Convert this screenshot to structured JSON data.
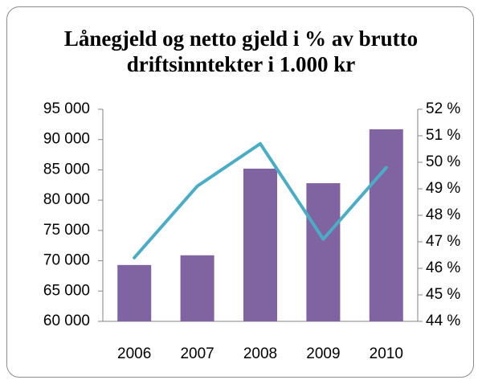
{
  "chart_data": {
    "type": "bar-line",
    "title": "Lånegjeld og netto gjeld i % av brutto driftsinntekter i 1.000 kr",
    "categories": [
      "2006",
      "2007",
      "2008",
      "2009",
      "2010"
    ],
    "series": [
      {
        "type": "bar",
        "color": "#8064a2",
        "values": [
          69300,
          70900,
          85200,
          82800,
          91700
        ]
      },
      {
        "type": "line",
        "axis": "y2",
        "color": "#4bacc6",
        "values": [
          46.4,
          49.1,
          50.7,
          47.1,
          49.8
        ]
      }
    ],
    "ylim": [
      60000,
      95000
    ],
    "yticks": [
      {
        "value": 60000,
        "label": "60 000"
      },
      {
        "value": 65000,
        "label": "65 000"
      },
      {
        "value": 70000,
        "label": "70 000"
      },
      {
        "value": 75000,
        "label": "75 000"
      },
      {
        "value": 80000,
        "label": "80 000"
      },
      {
        "value": 85000,
        "label": "85 000"
      },
      {
        "value": 90000,
        "label": "90 000"
      },
      {
        "value": 95000,
        "label": "95 000"
      }
    ],
    "y2lim": [
      44,
      52
    ],
    "y2ticks": [
      {
        "value": 44,
        "label": "44 %"
      },
      {
        "value": 45,
        "label": "45 %"
      },
      {
        "value": 46,
        "label": "46 %"
      },
      {
        "value": 47,
        "label": "47 %"
      },
      {
        "value": 48,
        "label": "48 %"
      },
      {
        "value": 49,
        "label": "49 %"
      },
      {
        "value": 50,
        "label": "50 %"
      },
      {
        "value": 51,
        "label": "51 %"
      },
      {
        "value": 52,
        "label": "52 %"
      }
    ]
  }
}
